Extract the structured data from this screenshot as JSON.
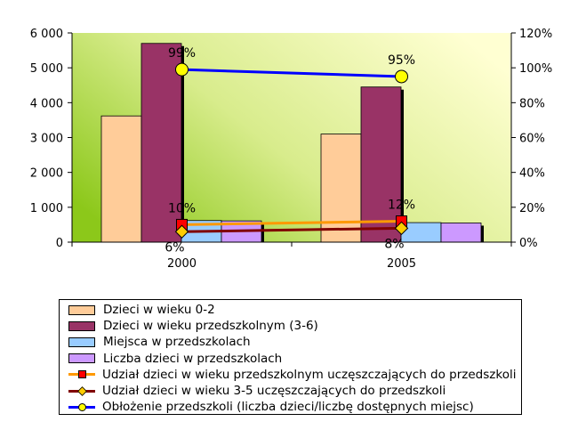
{
  "chart_data": {
    "type": "bar+line",
    "categories": [
      "2000",
      "2005"
    ],
    "left_axis": {
      "min": 0,
      "max": 6000,
      "step": 1000,
      "tick_labels": [
        "0",
        "1 000",
        "2 000",
        "3 000",
        "4 000",
        "5 000",
        "6 000"
      ]
    },
    "right_axis": {
      "min": 0,
      "max": 120,
      "step": 20,
      "tick_labels": [
        "0%",
        "20%",
        "40%",
        "60%",
        "80%",
        "100%",
        "120%"
      ]
    },
    "bar_series": [
      {
        "name": "Dzieci w wieku 0-2",
        "values": [
          3620,
          3100
        ],
        "color": "#FFCC99"
      },
      {
        "name": "Dzieci w wieku przedszkolnym (3-6)",
        "values": [
          5700,
          4450
        ],
        "color": "#993366"
      },
      {
        "name": "Miejsca w przedszkolach",
        "values": [
          620,
          560
        ],
        "color": "#99CCFF"
      },
      {
        "name": "Liczba dzieci w przedszkolach",
        "values": [
          610,
          550
        ],
        "color": "#CC99FF"
      }
    ],
    "line_series": [
      {
        "name": "Udział dzieci w wieku przedszkolnym uczęszczających do przedszkoli",
        "values": [
          10,
          12
        ],
        "labels": [
          "10%",
          "12%"
        ],
        "color": "#FF9900",
        "marker": "square",
        "marker_color": "#FF0000"
      },
      {
        "name": "Udział dzieci w wieku 3-5 uczęszczających do przedszkoli",
        "values": [
          6,
          8
        ],
        "labels": [
          "6%",
          "8%"
        ],
        "color": "#800000",
        "marker": "diamond",
        "marker_color": "#FFCC00"
      },
      {
        "name": "Obłożenie przedszkoli (liczba dzieci/liczbę dostępnych miejsc)",
        "values": [
          99,
          95
        ],
        "labels": [
          "99%",
          "95%"
        ],
        "color": "#0000FF",
        "marker": "circle",
        "marker_color": "#FFFF00"
      }
    ],
    "grid": false,
    "legend_position": "bottom",
    "plot_background": "gradient green to yellow"
  }
}
